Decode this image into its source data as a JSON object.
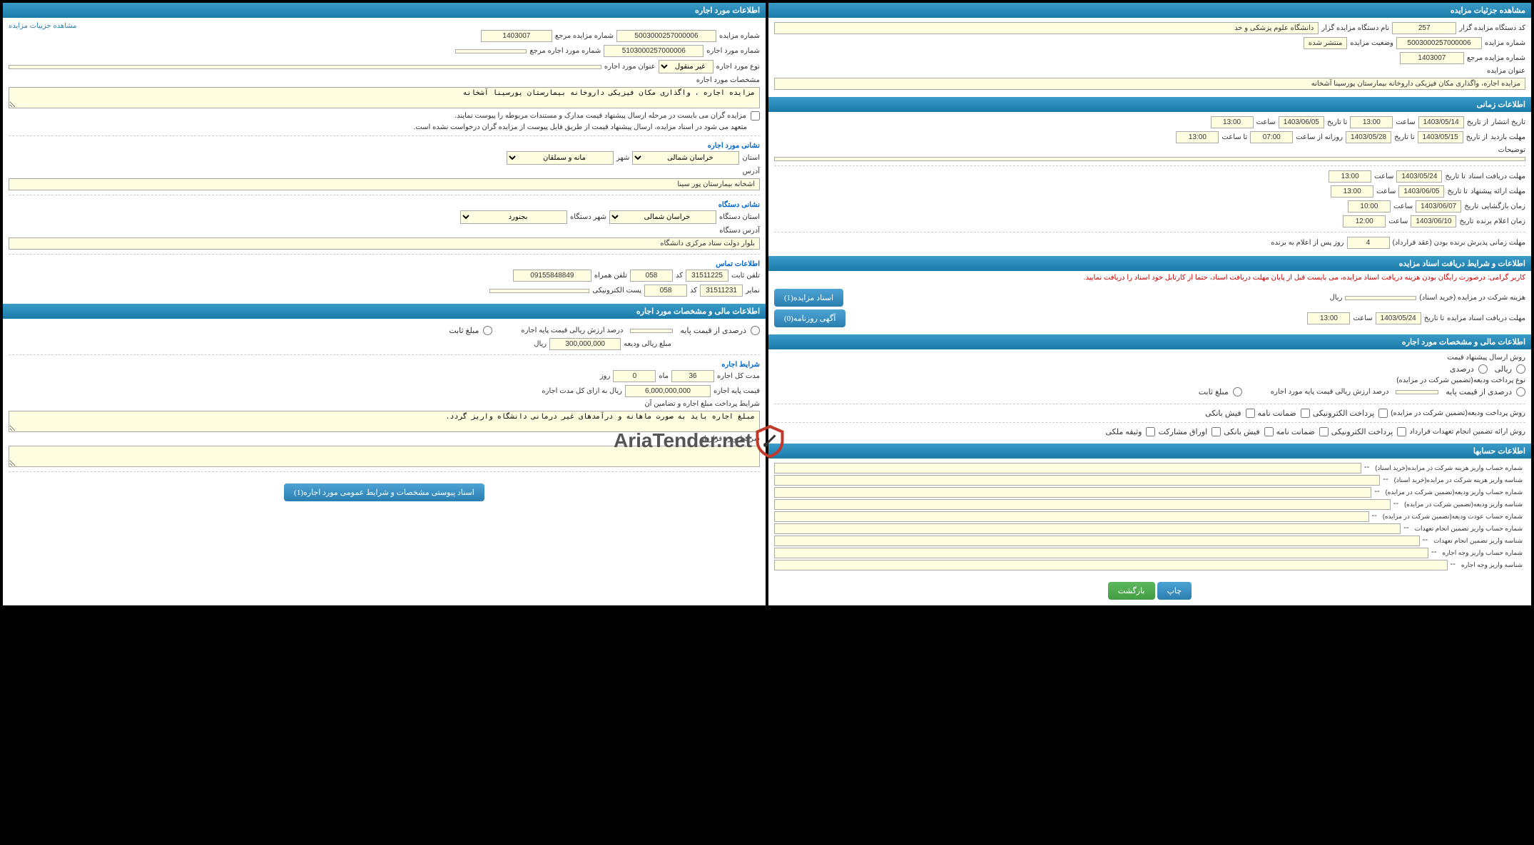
{
  "right_panel": {
    "sections": {
      "details": {
        "title": "مشاهده جزئیات مزایده",
        "org_code_label": "کد دستگاه مزایده گزار",
        "org_code": "257",
        "org_name_label": "نام دستگاه مزایده گزار",
        "org_name": "دانشگاه علوم پزشکی و خد",
        "auction_num_label": "شماره مزایده",
        "auction_num": "5003000257000006",
        "status_label": "وضعیت مزایده",
        "status": "منتشر شده",
        "ref_num_label": "شماره مزایده مرجع",
        "ref_num": "1403007",
        "auction_title_label": "عنوان مزایده",
        "auction_title": "مزایده اجاره، واگذاری مکان فیزیکی داروخانه بیمارستان پورسینا آشخانه"
      },
      "timing": {
        "title": "اطلاعات زمانی",
        "publish_label": "تاریخ انتشار",
        "publish_from": "از تاریخ",
        "publish_date1": "1403/05/14",
        "time_label": "ساعت",
        "publish_time1": "13:00",
        "publish_to": "تا تاریخ",
        "publish_date2": "1403/06/05",
        "publish_time2": "13:00",
        "visit_label": "مهلت بازدید",
        "visit_from": "از تاریخ",
        "visit_date1": "1403/05/15",
        "visit_to": "تا تاریخ",
        "visit_date2": "1403/05/28",
        "daily_from": "روزانه از ساعت",
        "visit_time1": "07:00",
        "daily_to": "تا ساعت",
        "visit_time2": "13:00",
        "notes_label": "توضیحات",
        "deadline_doc_label": "مهلت دریافت اسناد",
        "deadline_doc_to": "تا تاریخ",
        "deadline_doc_date": "1403/05/24",
        "deadline_doc_time": "13:00",
        "proposal_label": "مهلت ارائه پیشنهاد",
        "proposal_to": "تا تاریخ",
        "proposal_date": "1403/06/05",
        "proposal_time": "13:00",
        "open_label": "زمان بازگشایی",
        "open_date_label": "تاریخ",
        "open_date": "1403/06/07",
        "open_time": "10:00",
        "winner_label": "زمان اعلام برنده",
        "winner_date_label": "تاریخ",
        "winner_date": "1403/06/10",
        "winner_time": "12:00",
        "accept_deadline_label": "مهلت زمانی پذیرش برنده بودن (عقد قرارداد)",
        "accept_deadline_val": "4",
        "accept_deadline_suffix": "روز پس از اعلام به برنده"
      },
      "doc_terms": {
        "title": "اطلاعات و شرایط دریافت اسناد مزایده",
        "warning": "کاربر گرامی: درصورت رایگان بودن هزینه دریافت اسناد مزایده، می بایست قبل از پایان مهلت دریافت اسناد، حتما از کارتابل خود اسناد را دریافت نمایید.",
        "fee_label": "هزینه شرکت در مزایده (خرید اسناد)",
        "fee_unit": "ریال",
        "doc_btn": "اسناد مزایده(1)",
        "deadline_label": "مهلت دریافت اسناد مزایده",
        "deadline_to": "تا تاریخ",
        "deadline_date": "1403/05/24",
        "deadline_time_label": "ساعت",
        "deadline_time": "13:00",
        "news_btn": "آگهی روزنامه(0)"
      },
      "financial": {
        "title": "اطلاعات مالی و مشخصات مورد اجاره",
        "price_method_label": "روش ارسال پیشنهاد قیمت",
        "opt_rial": "ریالی",
        "opt_percent": "درصدی",
        "deposit_type_label": "نوع پرداخت ودیعه(تضمین شرکت در مزایده)",
        "base_percent_label": "درصدی از قیمت پایه",
        "base_rial_label": "درصد ارزش ریالی قیمت پایه مورد اجاره",
        "fixed_label": "مبلغ ثابت",
        "deposit_method_label": "روش پرداخت ودیعه(تضمین شرکت در مزایده)",
        "opt_elec": "پرداخت الکترونیکی",
        "opt_guarantee": "ضمانت نامه",
        "opt_bank": "فیش بانکی",
        "contract_method_label": "روش ارائه تضمین انجام تعهدات قرارداد",
        "opt_stock": "اوراق مشارکت",
        "opt_property": "وثیقه ملکی"
      },
      "accounts": {
        "title": "اطلاعات حسابها",
        "rows": [
          "شماره حساب واریز هزینه شرکت در مزایده(خرید اسناد)",
          "شناسه واریز هزینه شرکت در مزایده(خرید اسناد)",
          "شماره حساب واریز ودیعه(تضمین شرکت در مزایده)",
          "شناسه واریز ودیعه(تضمین شرکت در مزایده)",
          "شماره حساب عودت ودیعه(تضمین شرکت در مزایده)",
          "شماره حساب واریز تضمین انجام تعهدات",
          "شناسه واریز تضمین انجام تعهدات",
          "شماره حساب واریز وجه اجاره",
          "شناسه واریز وجه اجاره"
        ]
      }
    },
    "footer": {
      "print": "چاپ",
      "back": "بازگشت"
    }
  },
  "left_panel": {
    "sections": {
      "lease_info": {
        "title": "اطلاعات مورد اجاره",
        "link": "مشاهده جزییات مزایده",
        "auction_num_label": "شماره مزایده",
        "auction_num": "5003000257000006",
        "ref_num_label": "شماره مزایده مرجع",
        "ref_num": "1403007",
        "lease_num_label": "شماره مورد اجاره",
        "lease_num": "5103000257000006",
        "lease_ref_label": "شماره مورد اجاره مرجع",
        "type_label": "نوع مورد اجاره",
        "type_val": "غیر منقول",
        "lease_title_label": "عنوان مورد اجاره",
        "spec_label": "مشخصات مورد اجاره",
        "spec_val": "مزایده اجاره ، واگذاری مکان فیزیکی داروخانه بیمارستان پورسینا آشخانه",
        "note1": "مزایده گران می بایست در مرحله ارسال پیشنهاد قیمت مدارک و مستندات مربوطه را پیوست نمایند.",
        "note2": "متعهد می شود در اسناد مزایده، ارسال پیشنهاد قیمت از طریق فایل پیوست از مزایده گران درخواست نشده است.",
        "address_title": "نشانی مورد اجاره",
        "province_label": "استان",
        "province_val": "خراسان شمالی",
        "city_label": "شهر",
        "city_val": "مانه و سملقان",
        "address_label": "آدرس",
        "address_val": "اشخانه بیمارستان پور سینا",
        "org_address_title": "نشانی دستگاه",
        "org_province_label": "استان دستگاه",
        "org_province_val": "خراسان شمالی",
        "org_city_label": "شهر دستگاه",
        "org_city_val": "بجنورد",
        "org_address_label": "آدرس دستگاه",
        "org_address_val": "بلوار دولت ستاد مرکزی دانشگاه",
        "contact_title": "اطلاعات تماس",
        "phone_label": "تلفن ثابت",
        "phone_val": "31511225",
        "code_label": "کد",
        "phone_code": "058",
        "mobile_label": "تلفن همراه",
        "mobile_val": "09155848849",
        "fax_label": "نمایر",
        "fax_val": "31511231",
        "fax_code": "058",
        "email_label": "پست الکترونیکی"
      },
      "financial": {
        "title": "اطلاعات مالی و مشخصات مورد اجاره",
        "base_percent_label": "درصدی از قیمت پایه",
        "base_rial_label": "درصد ارزش ریالی قیمت پایه اجاره",
        "fixed_label": "مبلغ ثابت",
        "deposit_label": "مبلغ ریالی ودیعه",
        "deposit_val": "300,000,000",
        "unit": "ریال",
        "terms_title": "شرایط اجاره",
        "duration_label": "مدت کل اجاره",
        "duration_months": "36",
        "months_label": "ماه",
        "duration_days": "0",
        "days_label": "روز",
        "base_price_label": "قیمت پایه اجاره",
        "base_price_val": "6,000,000,000",
        "base_price_suffix": "ریال به ازای کل مدت اجاره",
        "payment_terms_label": "شرایط پرداخت مبلغ اجاره و تضامین آن",
        "payment_terms_val": "مبلغ اجاره باید به صورت ماهانه و درآمدهای غیر درمانی دانشگاه واریز گردد.",
        "contract_terms_label": "شرایط ویژه قرارداد",
        "doc_btn": "اسناد پیوستی مشخصات و شرایط عمومی مورد اجاره(1)"
      }
    }
  },
  "watermark": {
    "text": "AriaTender.net"
  }
}
